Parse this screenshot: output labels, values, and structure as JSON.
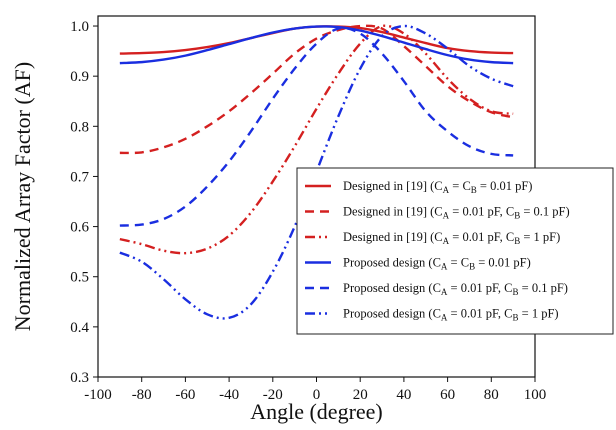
{
  "chart_data": {
    "type": "line",
    "xlabel": "Angle (degree)",
    "ylabel": "Normalized Array Factor (AF)",
    "xlim": [
      -100,
      100
    ],
    "ylim": [
      0.3,
      1.02
    ],
    "xticks": [
      -100,
      -80,
      -60,
      -40,
      -20,
      0,
      20,
      40,
      60,
      80,
      100
    ],
    "yticks": [
      0.3,
      0.4,
      0.5,
      0.6,
      0.7,
      0.8,
      0.9,
      1.0
    ],
    "ytick_labels": [
      "0.3",
      "0.4",
      "0.5",
      "0.6",
      "0.7",
      "0.8",
      "0.9",
      "1.0"
    ],
    "grid": false,
    "legend_position": "right",
    "x": [
      -90,
      -80,
      -70,
      -60,
      -50,
      -40,
      -30,
      -20,
      -10,
      0,
      10,
      20,
      30,
      40,
      50,
      60,
      70,
      80,
      90
    ],
    "series": [
      {
        "name": "Designed in [19] (CA = CB = 0.01 pF)",
        "legend": [
          {
            "t": "Designed in [19] (C"
          },
          {
            "t": "A",
            "sub": true
          },
          {
            "t": " = C"
          },
          {
            "t": "B",
            "sub": true
          },
          {
            "t": " = 0.01 pF)"
          }
        ],
        "color": "#d42020",
        "dash": "solid",
        "values": [
          0.945,
          0.946,
          0.948,
          0.952,
          0.958,
          0.966,
          0.976,
          0.986,
          0.995,
          0.999,
          0.999,
          0.996,
          0.988,
          0.977,
          0.966,
          0.956,
          0.95,
          0.947,
          0.946
        ]
      },
      {
        "name": "Designed in [19] (CA = 0.01 pF, CB = 0.1 pF)",
        "legend": [
          {
            "t": "Designed in [19] (C"
          },
          {
            "t": "A",
            "sub": true
          },
          {
            "t": " = 0.01 pF, C"
          },
          {
            "t": "B",
            "sub": true
          },
          {
            "t": " = 0.1 pF)"
          }
        ],
        "color": "#d42020",
        "dash": "dashed",
        "values": [
          0.747,
          0.748,
          0.758,
          0.775,
          0.8,
          0.83,
          0.866,
          0.905,
          0.945,
          0.975,
          0.992,
          1.0,
          0.995,
          0.96,
          0.92,
          0.88,
          0.85,
          0.828,
          0.818
        ]
      },
      {
        "name": "Designed in [19] (CA = 0.01 pF, CB = 1 pF)",
        "legend": [
          {
            "t": "Designed in [19] (C"
          },
          {
            "t": "A",
            "sub": true
          },
          {
            "t": " = 0.01 pF, C"
          },
          {
            "t": "B",
            "sub": true
          },
          {
            "t": " = 1 pF)"
          }
        ],
        "color": "#d42020",
        "dash": "dashdotdot",
        "values": [
          0.575,
          0.565,
          0.552,
          0.547,
          0.556,
          0.582,
          0.628,
          0.69,
          0.76,
          0.835,
          0.905,
          0.965,
          1.0,
          0.985,
          0.945,
          0.895,
          0.855,
          0.83,
          0.825
        ]
      },
      {
        "name": "Proposed design (CA = CB = 0.01 pF)",
        "legend": [
          {
            "t": "Proposed design (C"
          },
          {
            "t": "A",
            "sub": true
          },
          {
            "t": " = C"
          },
          {
            "t": "B",
            "sub": true
          },
          {
            "t": " = 0.01 pF)"
          }
        ],
        "color": "#1a2ee0",
        "dash": "solid",
        "values": [
          0.926,
          0.928,
          0.933,
          0.941,
          0.952,
          0.964,
          0.976,
          0.987,
          0.995,
          0.999,
          0.998,
          0.991,
          0.98,
          0.967,
          0.954,
          0.942,
          0.933,
          0.928,
          0.926
        ]
      },
      {
        "name": "Proposed design (CA = 0.01 pF, CB = 0.1 pF)",
        "legend": [
          {
            "t": "Proposed design (C"
          },
          {
            "t": "A",
            "sub": true
          },
          {
            "t": " = 0.01 pF, C"
          },
          {
            "t": "B",
            "sub": true
          },
          {
            "t": " = 0.1 pF)"
          }
        ],
        "color": "#1a2ee0",
        "dash": "dashed",
        "values": [
          0.602,
          0.604,
          0.615,
          0.64,
          0.68,
          0.73,
          0.79,
          0.855,
          0.915,
          0.965,
          0.995,
          0.985,
          0.945,
          0.89,
          0.83,
          0.79,
          0.76,
          0.745,
          0.742
        ]
      },
      {
        "name": "Proposed design (CA = 0.01 pF, CB = 1 pF)",
        "legend": [
          {
            "t": "Proposed design (C"
          },
          {
            "t": "A",
            "sub": true
          },
          {
            "t": " = 0.01 pF, C"
          },
          {
            "t": "B",
            "sub": true
          },
          {
            "t": " = 1 pF)"
          }
        ],
        "color": "#1a2ee0",
        "dash": "dashdotdot",
        "values": [
          0.548,
          0.53,
          0.495,
          0.455,
          0.425,
          0.418,
          0.445,
          0.51,
          0.6,
          0.71,
          0.82,
          0.915,
          0.98,
          1.0,
          0.985,
          0.955,
          0.92,
          0.895,
          0.88
        ]
      }
    ]
  }
}
